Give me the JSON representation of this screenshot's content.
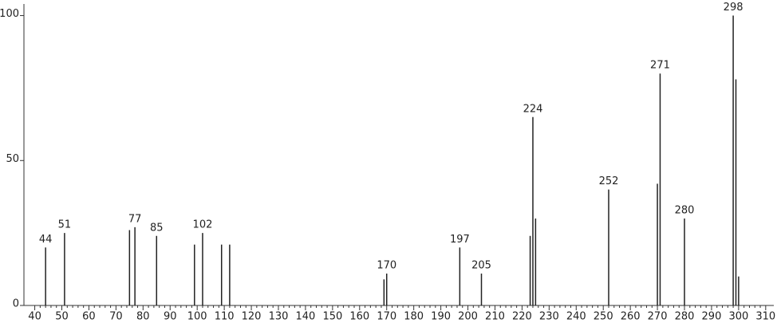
{
  "chart_data": {
    "type": "stick",
    "x": [
      44,
      51,
      75,
      77,
      85,
      99,
      102,
      109,
      112,
      169,
      170,
      197,
      205,
      223,
      224,
      225,
      252,
      270,
      271,
      280,
      298,
      299,
      300
    ],
    "values": [
      20,
      25,
      26,
      27,
      24,
      21,
      25,
      21,
      21,
      9,
      11,
      20,
      11,
      24,
      65,
      30,
      40,
      42,
      80,
      30,
      100,
      78,
      10
    ],
    "x_labels": [
      "44",
      "51",
      null,
      "77",
      "85",
      null,
      "102",
      null,
      null,
      null,
      "170",
      "197",
      "205",
      null,
      "224",
      null,
      "252",
      null,
      "271",
      "280",
      "298",
      null,
      null
    ],
    "color": "#222222",
    "xlim": [
      36,
      313
    ],
    "xticks": [
      40,
      50,
      60,
      70,
      80,
      90,
      100,
      110,
      120,
      130,
      140,
      150,
      160,
      170,
      180,
      190,
      200,
      210,
      220,
      230,
      240,
      250,
      260,
      270,
      280,
      290,
      300,
      310
    ],
    "ylim": [
      0,
      104
    ],
    "yticks": [
      0,
      50,
      100
    ]
  }
}
